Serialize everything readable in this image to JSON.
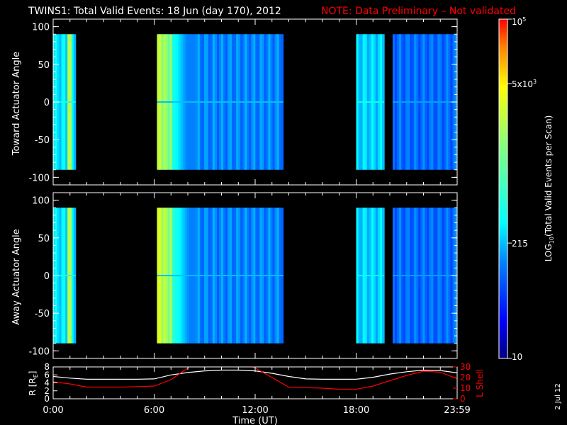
{
  "header": {
    "title": "TWINS1: Total Valid Events: 18 Jun (day 170), 2012",
    "note": "NOTE: Data Preliminary – Not validated",
    "date_stamp": "2 Jul 12"
  },
  "colors": {
    "background": "#000000",
    "axis": "#ffffff",
    "note": "#ff0000",
    "r_line": "#ffffff",
    "lshell_line": "#ff0000"
  },
  "chart_data": [
    {
      "type": "heatmap",
      "ylabel": "Toward Actuator Angle",
      "ylim": [
        -110,
        110
      ],
      "yticks": [
        "100",
        "50",
        "0",
        "-50",
        "-100"
      ],
      "angle_range": [
        -90,
        90
      ],
      "data_blocks": [
        {
          "x_start": "00:00",
          "x_end": "01:20",
          "level": 0.38,
          "note_stripes": [
            {
              "t": "01:00",
              "level": 0.7
            }
          ]
        },
        {
          "x_start": "06:10",
          "x_end": "13:40",
          "level": 0.28,
          "peak_start": "06:10",
          "peak_end": "07:00",
          "peak_level": 0.72
        },
        {
          "x_start": "18:00",
          "x_end": "19:40",
          "level": 0.36
        },
        {
          "x_start": "20:10",
          "x_end": "23:59",
          "level": 0.25
        }
      ]
    },
    {
      "type": "heatmap",
      "ylabel": "Away Actuator Angle",
      "ylim": [
        -110,
        110
      ],
      "yticks": [
        "100",
        "50",
        "0",
        "-50",
        "-100"
      ],
      "angle_range": [
        -90,
        90
      ],
      "data_blocks": [
        {
          "x_start": "00:00",
          "x_end": "01:20",
          "level": 0.38,
          "note_stripes": [
            {
              "t": "01:00",
              "level": 0.7
            }
          ]
        },
        {
          "x_start": "06:10",
          "x_end": "13:40",
          "level": 0.28,
          "peak_start": "06:10",
          "peak_end": "07:00",
          "peak_level": 0.75
        },
        {
          "x_start": "18:00",
          "x_end": "19:40",
          "level": 0.36
        },
        {
          "x_start": "20:10",
          "x_end": "23:59",
          "level": 0.25
        }
      ]
    },
    {
      "type": "line",
      "ylabel": "R [R",
      "ylabel_sub": "E",
      "ylabel_end": "]",
      "y2label": "L Shell",
      "ylim": [
        0,
        8
      ],
      "y2lim": [
        0,
        30
      ],
      "yticks": [
        "8",
        "6",
        "4",
        "2",
        "0"
      ],
      "y2ticks": [
        "30",
        "20",
        "10",
        "0"
      ],
      "xlabel": "Time (UT)",
      "xticks": [
        "0:00",
        "6:00",
        "12:00",
        "18:00",
        "23:59"
      ],
      "series": [
        {
          "x": [
            0,
            1,
            2,
            3,
            4,
            5,
            6,
            7,
            8,
            9,
            10,
            11,
            12,
            13,
            14,
            15,
            16,
            17,
            18,
            19,
            20,
            21,
            22,
            23,
            24
          ],
          "values": [
            5.6,
            5.2,
            4.9,
            4.9,
            4.9,
            4.9,
            5.0,
            6.0,
            6.6,
            7.0,
            7.2,
            7.2,
            7.0,
            6.4,
            5.6,
            5.0,
            4.9,
            4.9,
            4.9,
            5.4,
            6.2,
            6.8,
            7.2,
            7.1,
            6.5
          ]
        },
        {
          "x": [
            0,
            1,
            2,
            3,
            4,
            5,
            6,
            7,
            8,
            8.1,
            11.7,
            12,
            13,
            14,
            15,
            16,
            17,
            18,
            19,
            20,
            21,
            22,
            23,
            24
          ],
          "values": [
            16,
            14,
            11,
            11,
            11,
            11.5,
            12,
            18,
            29,
            31,
            31,
            29,
            20,
            11,
            10.5,
            10,
            9,
            9,
            12,
            17,
            22,
            26,
            25,
            19
          ]
        }
      ]
    },
    {
      "type": "heatmap",
      "title": "LOG10(Total Valid Events per Scan)",
      "ylabel": "LOG",
      "ylabel_sub": "10",
      "ylabel_end": "(Total Valid Events per Scan)",
      "tick_labels": [
        {
          "base": "10",
          "sup": "5",
          "sub": ""
        },
        {
          "base": "5x10",
          "sup": "3",
          "sub": ""
        },
        {
          "base": "215",
          "sup": "",
          "sub": ""
        },
        {
          "base": "10",
          "sup": "",
          "sub": ""
        }
      ],
      "tick_levels": [
        1.0,
        0.81,
        0.34,
        0.0
      ]
    }
  ]
}
